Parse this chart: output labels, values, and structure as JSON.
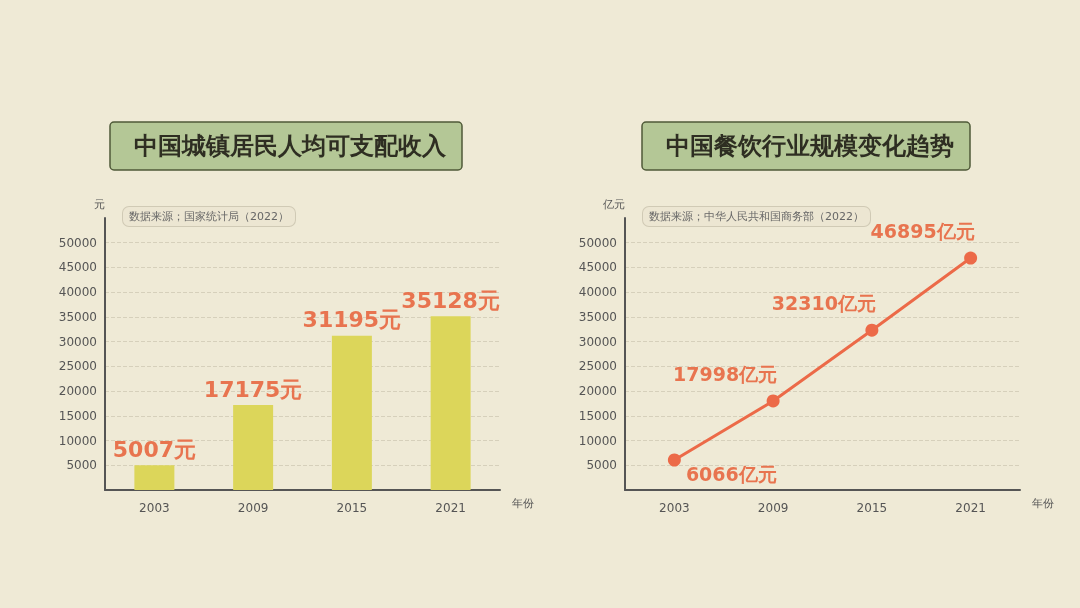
{
  "chart_data": [
    {
      "type": "bar",
      "title": "中国城镇居民人均可支配收入",
      "annotations": [
        "数据来源；国家统计局（2022）"
      ],
      "ylabel": "元",
      "xlabel": "年份",
      "categories": [
        "2003",
        "2009",
        "2015",
        "2021"
      ],
      "series": [
        {
          "color": "#dcd65a",
          "values": [
            5007,
            17175,
            31195,
            35128
          ],
          "value_labels": [
            "5007元",
            "17175元",
            "31195元",
            "35128元"
          ]
        }
      ],
      "ylim": [
        0,
        55000
      ],
      "yticks": [
        {
          "value": 0,
          "label": null
        },
        5000,
        10000,
        15000,
        20000,
        25000,
        30000,
        35000,
        40000,
        45000,
        50000
      ],
      "grid": "y"
    },
    {
      "type": "line",
      "title": "中国餐饮行业规模变化趋势",
      "annotations": [
        "数据来源；中华人民共和国商务部（2022）"
      ],
      "ylabel": "亿元",
      "xlabel": "年份",
      "categories": [
        "2003",
        "2009",
        "2015",
        "2021"
      ],
      "series": [
        {
          "color": "#ec6a48",
          "values": [
            6066,
            17998,
            32310,
            46895
          ],
          "value_labels": [
            "6066亿元",
            "17998亿元",
            "32310亿元",
            "46895亿元"
          ]
        }
      ],
      "ylim": [
        0,
        55000
      ],
      "yticks": [
        {
          "value": 0,
          "label": null
        },
        5000,
        10000,
        15000,
        20000,
        25000,
        30000,
        35000,
        40000,
        45000,
        50000
      ],
      "grid": "y",
      "marker": "circle",
      "line_style": "solid"
    }
  ]
}
